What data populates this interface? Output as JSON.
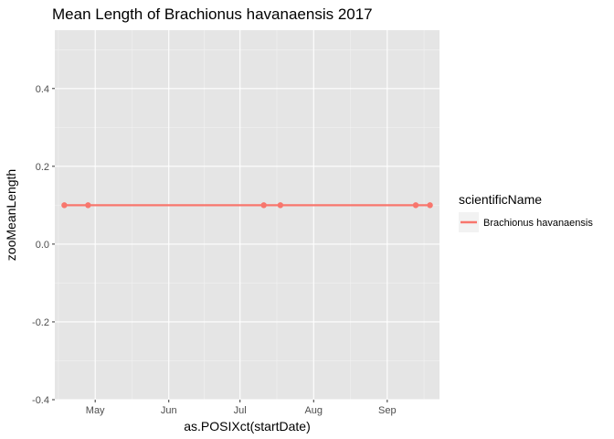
{
  "chart_data": {
    "type": "line",
    "title": "Mean Length of Brachionus havanaensis 2017",
    "xlabel": "as.POSIXct(startDate)",
    "ylabel": "zooMeanLength",
    "x_is_date": true,
    "xlim": [
      "2017-04-14",
      "2017-09-23"
    ],
    "ylim": [
      -0.4,
      0.55
    ],
    "x_ticks": [
      {
        "date": "2017-05-01",
        "label": "May"
      },
      {
        "date": "2017-06-01",
        "label": "Jun"
      },
      {
        "date": "2017-07-01",
        "label": "Jul"
      },
      {
        "date": "2017-08-01",
        "label": "Aug"
      },
      {
        "date": "2017-09-01",
        "label": "Sep"
      }
    ],
    "y_ticks": [
      {
        "value": -0.4,
        "label": "-0.4"
      },
      {
        "value": -0.2,
        "label": "-0.2"
      },
      {
        "value": 0.0,
        "label": "0.0"
      },
      {
        "value": 0.2,
        "label": "0.2"
      },
      {
        "value": 0.4,
        "label": "0.4"
      }
    ],
    "grid": true,
    "legend": {
      "title": "scientificName",
      "position": "right"
    },
    "series": [
      {
        "name": "Brachionus havanaensis",
        "color": "#F8766D",
        "points": [
          {
            "x": "2017-04-18",
            "y": 0.1
          },
          {
            "x": "2017-04-28",
            "y": 0.1
          },
          {
            "x": "2017-07-11",
            "y": 0.1
          },
          {
            "x": "2017-07-18",
            "y": 0.1
          },
          {
            "x": "2017-09-13",
            "y": 0.1
          },
          {
            "x": "2017-09-19",
            "y": 0.1
          }
        ]
      }
    ]
  }
}
